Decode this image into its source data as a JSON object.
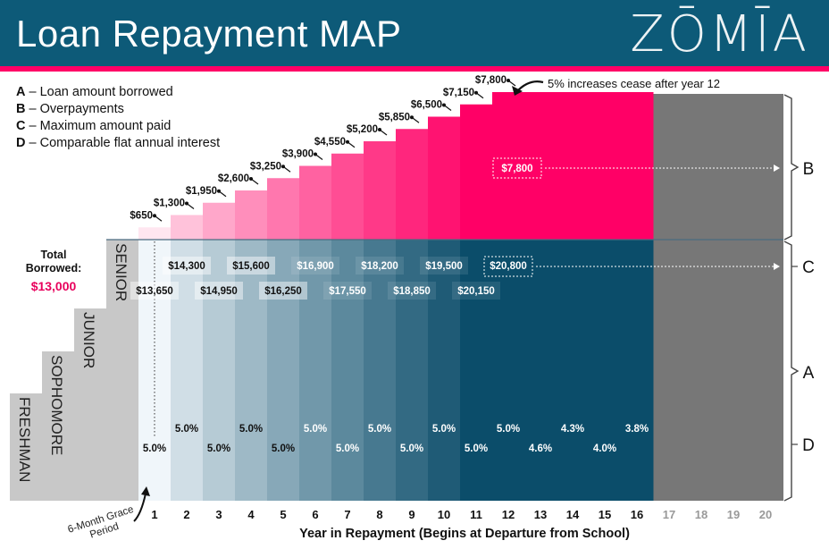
{
  "header": {
    "title": "Loan Repayment MAP",
    "brand": "ZŌMĪA"
  },
  "legend": [
    {
      "key": "A",
      "text": " – Loan amount borrowed"
    },
    {
      "key": "B",
      "text": " – Overpayments"
    },
    {
      "key": "C",
      "text": " – Maximum amount paid"
    },
    {
      "key": "D",
      "text": " – Comparable flat annual interest"
    }
  ],
  "total": {
    "label": "Total Borrowed:",
    "value": "$13,000"
  },
  "school_years": [
    "FRESHMAN",
    "SOPHOMORE",
    "JUNIOR",
    "SENIOR"
  ],
  "grace_period": "6-Month Grace Period",
  "annotation": "5% increases cease after year 12",
  "side_labels": [
    "B",
    "C",
    "A",
    "D"
  ],
  "colors": {
    "header": "#0d5a78",
    "accent": "#ff0066",
    "school": "#c8c8c8",
    "extension": "#777777",
    "pink_max": "#ff0066",
    "teal_max": "#0b4d6a"
  },
  "chart_data": {
    "type": "bar",
    "title": "Loan Repayment MAP",
    "xlabel": "Year in Repayment (Begins at Departure from School)",
    "ylabel": "",
    "x": [
      1,
      2,
      3,
      4,
      5,
      6,
      7,
      8,
      9,
      10,
      11,
      12,
      13,
      14,
      15,
      16,
      17,
      18,
      19,
      20
    ],
    "series": [
      {
        "name": "Overpayments",
        "values": [
          650,
          1300,
          1950,
          2600,
          3250,
          3900,
          4550,
          5200,
          5850,
          6500,
          7150,
          7800,
          7800,
          7800,
          7800,
          7800,
          null,
          null,
          null,
          null
        ],
        "labels": [
          "$650",
          "$1,300",
          "$1,950",
          "$2,600",
          "$3,250",
          "$3,900",
          "$4,550",
          "$5,200",
          "$5,850",
          "$6,500",
          "$7,150",
          "$7,800",
          "",
          "",
          "",
          "",
          "",
          "",
          "",
          ""
        ],
        "flat_label": "$7,800"
      },
      {
        "name": "Maximum amount paid",
        "values": [
          13650,
          14300,
          14950,
          15600,
          16250,
          16900,
          17550,
          18200,
          18850,
          19500,
          20150,
          20800,
          20800,
          20800,
          20800,
          20800,
          null,
          null,
          null,
          null
        ],
        "labels": [
          "$13,650",
          "$14,300",
          "$14,950",
          "$15,600",
          "$16,250",
          "$16,900",
          "$17,550",
          "$18,200",
          "$18,850",
          "$19,500",
          "$20,150",
          "$20,800",
          "",
          "",
          "",
          "",
          "",
          "",
          "",
          ""
        ]
      },
      {
        "name": "Comparable flat annual interest",
        "values": [
          5.0,
          5.0,
          5.0,
          5.0,
          5.0,
          5.0,
          5.0,
          5.0,
          5.0,
          5.0,
          5.0,
          5.0,
          4.6,
          4.3,
          4.0,
          3.8,
          null,
          null,
          null,
          null
        ],
        "labels": [
          "5.0%",
          "5.0%",
          "5.0%",
          "5.0%",
          "5.0%",
          "5.0%",
          "5.0%",
          "5.0%",
          "5.0%",
          "5.0%",
          "5.0%",
          "5.0%",
          "4.6%",
          "4.3%",
          "4.0%",
          "3.8%",
          "",
          "",
          "",
          ""
        ]
      }
    ],
    "loan_amount": 13000,
    "extension_years": [
      17,
      18,
      19,
      20
    ],
    "ylim": [
      0,
      20800
    ]
  }
}
